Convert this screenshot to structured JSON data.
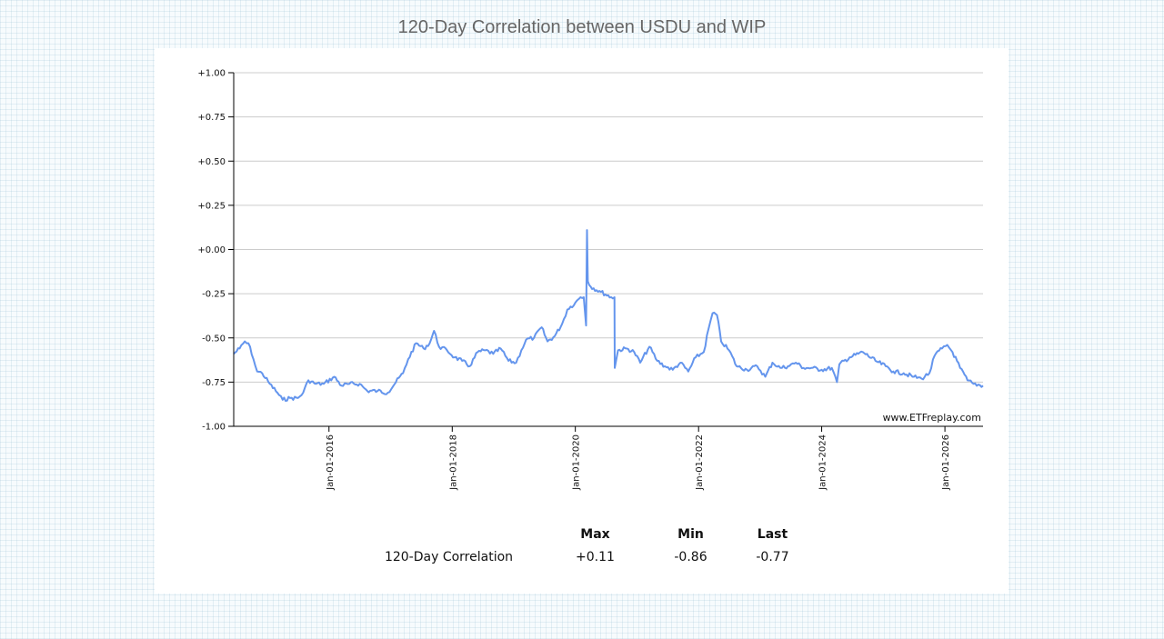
{
  "page": {
    "title": "120-Day Correlation between USDU and WIP",
    "watermark": "www.ETFreplay.com"
  },
  "stats": {
    "headers": [
      "Max",
      "Min",
      "Last"
    ],
    "row_label": "120-Day Correlation",
    "max": "+0.11",
    "min": "-0.86",
    "last": "-0.77"
  },
  "colors": {
    "line": "#6495ed",
    "grid": "#cccccc",
    "axis": "#000000",
    "title": "#666666"
  },
  "chart_data": {
    "type": "line",
    "title": "120-Day Correlation between USDU and WIP",
    "xlabel": "",
    "ylabel": "",
    "ylim": [
      -1.0,
      1.0
    ],
    "xlim": [
      "2014-06-15",
      "2026-08-15"
    ],
    "y_ticks": [
      "+1.00",
      "+0.75",
      "+0.50",
      "+0.25",
      "+0.00",
      "-0.25",
      "-0.50",
      "-0.75",
      "-1.00"
    ],
    "y_tick_values": [
      1.0,
      0.75,
      0.5,
      0.25,
      0.0,
      -0.25,
      -0.5,
      -0.75,
      -1.0
    ],
    "x_ticks": [
      "Jan-01-2016",
      "Jan-01-2018",
      "Jan-01-2020",
      "Jan-01-2022",
      "Jan-01-2024",
      "Jan-01-2026"
    ],
    "x_tick_dates": [
      "2016-01-01",
      "2018-01-01",
      "2020-01-01",
      "2022-01-01",
      "2024-01-01",
      "2026-01-01"
    ],
    "grid": true,
    "series": [
      {
        "values": [
          [
            "2014-06-15",
            -0.59
          ],
          [
            "2014-07-20",
            -0.56
          ],
          [
            "2014-08-20",
            -0.52
          ],
          [
            "2014-09-20",
            -0.55
          ],
          [
            "2014-10-10",
            -0.62
          ],
          [
            "2014-11-01",
            -0.69
          ],
          [
            "2014-12-01",
            -0.7
          ],
          [
            "2015-01-15",
            -0.76
          ],
          [
            "2015-03-01",
            -0.81
          ],
          [
            "2015-04-01",
            -0.85
          ],
          [
            "2015-05-15",
            -0.84
          ],
          [
            "2015-07-01",
            -0.84
          ],
          [
            "2015-08-01",
            -0.81
          ],
          [
            "2015-09-01",
            -0.74
          ],
          [
            "2015-10-15",
            -0.76
          ],
          [
            "2015-12-01",
            -0.76
          ],
          [
            "2016-02-01",
            -0.72
          ],
          [
            "2016-03-15",
            -0.77
          ],
          [
            "2016-05-01",
            -0.76
          ],
          [
            "2016-07-01",
            -0.76
          ],
          [
            "2016-08-15",
            -0.8
          ],
          [
            "2016-10-15",
            -0.8
          ],
          [
            "2016-12-15",
            -0.81
          ],
          [
            "2017-02-01",
            -0.75
          ],
          [
            "2017-03-15",
            -0.7
          ],
          [
            "2017-04-15",
            -0.62
          ],
          [
            "2017-06-01",
            -0.53
          ],
          [
            "2017-07-15",
            -0.56
          ],
          [
            "2017-08-20",
            -0.53
          ],
          [
            "2017-09-15",
            -0.46
          ],
          [
            "2017-10-15",
            -0.55
          ],
          [
            "2017-12-01",
            -0.57
          ],
          [
            "2018-01-15",
            -0.61
          ],
          [
            "2018-03-01",
            -0.63
          ],
          [
            "2018-04-15",
            -0.66
          ],
          [
            "2018-06-01",
            -0.58
          ],
          [
            "2018-07-15",
            -0.57
          ],
          [
            "2018-09-01",
            -0.59
          ],
          [
            "2018-10-15",
            -0.56
          ],
          [
            "2018-12-01",
            -0.63
          ],
          [
            "2019-01-15",
            -0.64
          ],
          [
            "2019-02-15",
            -0.57
          ],
          [
            "2019-03-15",
            -0.51
          ],
          [
            "2019-05-01",
            -0.5
          ],
          [
            "2019-06-15",
            -0.44
          ],
          [
            "2019-07-20",
            -0.52
          ],
          [
            "2019-09-01",
            -0.49
          ],
          [
            "2019-10-15",
            -0.42
          ],
          [
            "2019-11-15",
            -0.34
          ],
          [
            "2020-01-01",
            -0.3
          ],
          [
            "2020-02-01",
            -0.27
          ],
          [
            "2020-02-20",
            -0.27
          ],
          [
            "2020-03-05",
            -0.43
          ],
          [
            "2020-03-10",
            0.11
          ],
          [
            "2020-03-15",
            -0.18
          ],
          [
            "2020-04-01",
            -0.21
          ],
          [
            "2020-06-01",
            -0.24
          ],
          [
            "2020-08-01",
            -0.27
          ],
          [
            "2020-08-20",
            -0.27
          ],
          [
            "2020-08-22",
            -0.67
          ],
          [
            "2020-09-10",
            -0.57
          ],
          [
            "2020-11-01",
            -0.56
          ],
          [
            "2020-12-15",
            -0.58
          ],
          [
            "2021-01-20",
            -0.64
          ],
          [
            "2021-03-15",
            -0.55
          ],
          [
            "2021-05-01",
            -0.63
          ],
          [
            "2021-06-15",
            -0.66
          ],
          [
            "2021-08-01",
            -0.68
          ],
          [
            "2021-09-15",
            -0.64
          ],
          [
            "2021-11-01",
            -0.69
          ],
          [
            "2021-12-15",
            -0.61
          ],
          [
            "2022-02-01",
            -0.58
          ],
          [
            "2022-03-01",
            -0.45
          ],
          [
            "2022-03-25",
            -0.36
          ],
          [
            "2022-04-20",
            -0.37
          ],
          [
            "2022-05-15",
            -0.52
          ],
          [
            "2022-07-01",
            -0.57
          ],
          [
            "2022-08-15",
            -0.66
          ],
          [
            "2022-10-15",
            -0.68
          ],
          [
            "2022-12-15",
            -0.66
          ],
          [
            "2023-02-01",
            -0.72
          ],
          [
            "2023-03-15",
            -0.64
          ],
          [
            "2023-05-01",
            -0.67
          ],
          [
            "2023-06-15",
            -0.66
          ],
          [
            "2023-08-01",
            -0.64
          ],
          [
            "2023-09-15",
            -0.67
          ],
          [
            "2023-11-01",
            -0.67
          ],
          [
            "2024-01-01",
            -0.68
          ],
          [
            "2024-03-01",
            -0.67
          ],
          [
            "2024-04-01",
            -0.75
          ],
          [
            "2024-04-15",
            -0.65
          ],
          [
            "2024-06-15",
            -0.61
          ],
          [
            "2024-09-01",
            -0.58
          ],
          [
            "2024-11-15",
            -0.63
          ],
          [
            "2025-01-15",
            -0.66
          ],
          [
            "2025-03-01",
            -0.69
          ],
          [
            "2025-05-01",
            -0.7
          ],
          [
            "2025-07-01",
            -0.72
          ],
          [
            "2025-08-15",
            -0.73
          ],
          [
            "2025-10-01",
            -0.7
          ],
          [
            "2025-11-01",
            -0.6
          ],
          [
            "2025-12-15",
            -0.56
          ],
          [
            "2026-01-15",
            -0.54
          ],
          [
            "2026-02-15",
            -0.58
          ],
          [
            "2026-04-01",
            -0.67
          ],
          [
            "2026-05-15",
            -0.74
          ],
          [
            "2026-06-20",
            -0.76
          ],
          [
            "2026-08-15",
            -0.77
          ]
        ]
      }
    ]
  }
}
